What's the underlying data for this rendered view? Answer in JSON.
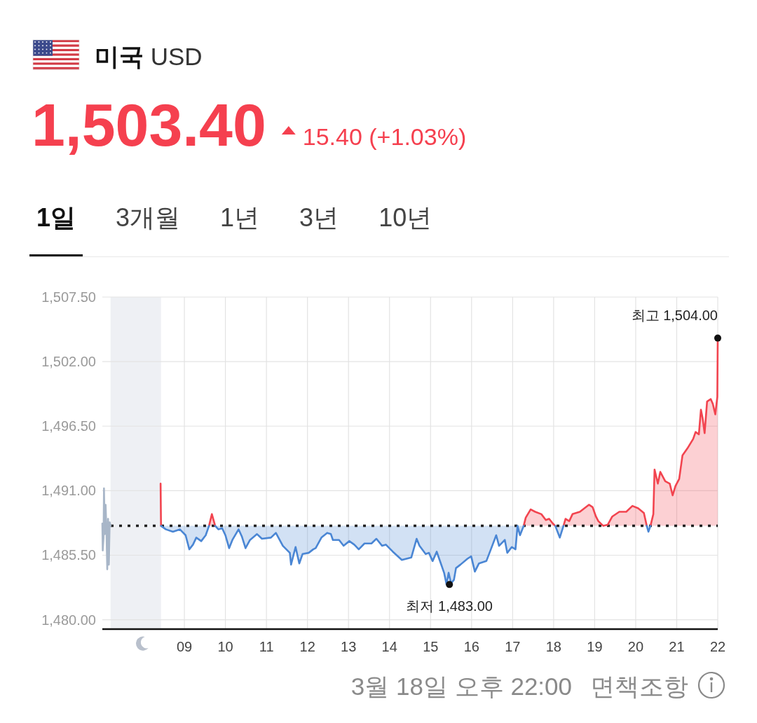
{
  "chart_data": {
    "type": "area",
    "title": "**미국** USD",
    "subtitle": "1,503.40",
    "annotations": [
      "15.40 (+1.03%)",
      "1일",
      "3개월",
      "1년",
      "3년",
      "10년",
      {
        "text": "최고 1,504.00",
        "x": 22,
        "y": 1504
      },
      {
        "text": "최저 1,483.00",
        "x": 15.46,
        "y": 1483
      },
      "3월 18일 오후 22:00",
      "면책조항"
    ],
    "x": [
      8.42,
      8.43,
      8.55,
      8.72,
      8.89,
      9.03,
      9.12,
      9.21,
      9.29,
      9.41,
      9.52,
      9.6,
      9.67,
      9.75,
      9.83,
      9.92,
      10.0,
      10.09,
      10.17,
      10.32,
      10.4,
      10.49,
      10.6,
      10.77,
      10.89,
      11.11,
      11.23,
      11.4,
      11.57,
      11.6,
      11.71,
      11.8,
      11.88,
      12.03,
      12.14,
      12.2,
      12.34,
      12.48,
      12.57,
      12.62,
      12.77,
      12.88,
      13.02,
      13.14,
      13.25,
      13.39,
      13.56,
      13.68,
      13.82,
      13.91,
      14.08,
      14.3,
      14.53,
      14.66,
      14.73,
      14.88,
      14.96,
      15.05,
      15.15,
      15.24,
      15.33,
      15.39,
      15.44,
      15.5,
      15.57,
      15.62,
      15.73,
      15.9,
      15.99,
      16.08,
      16.18,
      16.36,
      16.47,
      16.6,
      16.67,
      16.81,
      16.87,
      16.98,
      17.07,
      17.12,
      17.18,
      17.27,
      17.32,
      17.44,
      17.55,
      17.7,
      17.81,
      17.89,
      17.98,
      18.04,
      18.15,
      18.24,
      18.29,
      18.38,
      18.46,
      18.64,
      18.75,
      18.86,
      18.95,
      19.03,
      19.09,
      19.21,
      19.32,
      19.43,
      19.6,
      19.77,
      19.92,
      20.06,
      20.2,
      20.27,
      20.31,
      20.36,
      20.43,
      20.46,
      20.54,
      20.6,
      20.72,
      20.83,
      20.9,
      20.97,
      21.06,
      21.14,
      21.26,
      21.4,
      21.46,
      21.54,
      21.59,
      21.63,
      21.68,
      21.74,
      21.83,
      21.88,
      21.94,
      21.99,
      22.0
    ],
    "series": [
      {
        "color": "#f2444f",
        "values": [
          1491.6,
          1488.0,
          null,
          null,
          null,
          null,
          null,
          null,
          null,
          null,
          null,
          1488.0,
          1489.0,
          1488.0,
          null,
          null,
          null,
          null,
          null,
          null,
          null,
          null,
          null,
          null,
          null,
          null,
          null,
          null,
          null,
          null,
          null,
          null,
          null,
          null,
          null,
          null,
          null,
          null,
          null,
          null,
          null,
          null,
          null,
          null,
          null,
          null,
          null,
          null,
          null,
          null,
          null,
          null,
          null,
          null,
          null,
          null,
          null,
          null,
          null,
          null,
          null,
          null,
          null,
          null,
          null,
          null,
          null,
          null,
          null,
          null,
          null,
          null,
          null,
          null,
          null,
          null,
          null,
          null,
          null,
          null,
          null,
          1488.0,
          1488.7,
          1489.4,
          1489.2,
          1489.0,
          1488.5,
          1488.6,
          1488.2,
          1488.0,
          null,
          1488.0,
          1488.6,
          1488.4,
          1489.0,
          1489.2,
          1489.5,
          1489.8,
          1489.6,
          1488.8,
          1488.4,
          1488.0,
          1488.1,
          1488.8,
          1489.2,
          1489.2,
          1489.7,
          1489.5,
          1489.1,
          1488.0,
          null,
          1488.0,
          1489.0,
          1492.8,
          1491.6,
          1492.6,
          1491.8,
          1491.6,
          1490.6,
          1491.4,
          1492.0,
          1494.0,
          1494.6,
          1495.4,
          1496.0,
          1495.8,
          1497.9,
          1497.2,
          1495.9,
          1498.6,
          1498.8,
          1498.4,
          1497.5,
          1499.0,
          1504.0
        ]
      },
      {
        "color": "#4a86d4",
        "values": [
          null,
          1488.0,
          1487.7,
          1487.5,
          1487.7,
          1487.2,
          1486.0,
          1486.4,
          1487.0,
          1486.7,
          1487.2,
          1488.0,
          null,
          1488.0,
          1487.7,
          1487.8,
          1487.2,
          1486.1,
          1486.8,
          1487.7,
          1487.1,
          1486.1,
          1486.8,
          1487.3,
          1486.9,
          1487.0,
          1487.4,
          1486.3,
          1485.7,
          1484.7,
          1486.2,
          1484.8,
          1485.6,
          1485.7,
          1486.0,
          1486.1,
          1487.0,
          1487.4,
          1487.3,
          1486.8,
          1486.8,
          1486.3,
          1486.7,
          1486.4,
          1486.0,
          1486.5,
          1486.5,
          1486.9,
          1486.3,
          1486.4,
          1485.8,
          1485.1,
          1485.3,
          1486.9,
          1486.3,
          1485.6,
          1485.7,
          1485.0,
          1485.8,
          1484.9,
          1484.0,
          1483.0,
          1484.0,
          1483.1,
          1483.4,
          1484.4,
          1484.7,
          1485.2,
          1485.4,
          1484.1,
          1484.8,
          1485.0,
          1486.0,
          1487.2,
          1486.3,
          1486.8,
          1485.7,
          1486.2,
          1486.0,
          1488.0,
          1487.2,
          1488.0,
          null,
          null,
          null,
          null,
          null,
          null,
          null,
          1488.0,
          1487.0,
          1488.0,
          null,
          null,
          null,
          null,
          null,
          null,
          null,
          null,
          null,
          null,
          null,
          null,
          null,
          null,
          null,
          null,
          null,
          1488.0,
          1487.5,
          1488.0,
          null,
          null,
          null,
          null,
          null,
          null,
          null,
          null,
          null,
          null,
          null,
          null,
          null,
          null,
          null,
          null,
          null,
          null,
          null,
          null,
          null,
          null,
          null
        ]
      },
      {
        "type": "line",
        "color": "#a8b6c8",
        "x": [
          7.0,
          7.01,
          7.03,
          7.04,
          7.06,
          7.08,
          7.1,
          7.12,
          7.14,
          7.16,
          7.18,
          7.2
        ],
        "values": [
          1488.2,
          1485.9,
          1487.0,
          1491.2,
          1487.3,
          1489.8,
          1487.6,
          1484.3,
          1488.6,
          1484.7,
          1488.3,
          1488.0
        ]
      },
      {
        "type": "scatter",
        "color": "#111111",
        "x": [
          22,
          15.46
        ],
        "values": [
          1504,
          1483
        ]
      }
    ],
    "xlim": [
      7,
      22
    ],
    "xticks": [
      {
        "value": 9,
        "label": "09"
      },
      10,
      11,
      12,
      13,
      14,
      15,
      16,
      17,
      18,
      19,
      20,
      21,
      22
    ],
    "ylim": [
      1479.2,
      1507.5
    ],
    "yticks": [
      {
        "value": 1480,
        "label": "1,480.00"
      },
      {
        "value": 1485.5,
        "label": "1,485.50"
      },
      {
        "value": 1491,
        "label": "1,491.00"
      },
      {
        "value": 1496.5,
        "label": "1,496.50"
      },
      {
        "value": 1502,
        "label": "1,502.00"
      },
      {
        "value": 1507.5,
        "label": "1,507.50"
      }
    ],
    "grid": true,
    "ref_lines": [
      {
        "axis": "y",
        "value": 1488,
        "line_style": "dotted",
        "color": "#222222"
      }
    ],
    "bands": [
      {
        "axis": "x",
        "from": 7.2,
        "to": 8.43,
        "color": "#eef0f4"
      }
    ]
  }
}
